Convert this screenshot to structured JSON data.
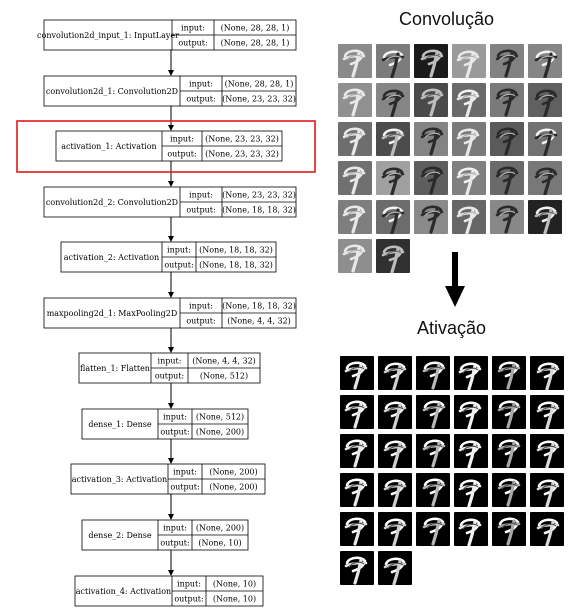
{
  "model": {
    "layers": [
      {
        "name": "convolution2d_input_1: InputLayer",
        "input": "(None, 28, 28, 1)",
        "output": "(None, 28, 28, 1)",
        "highlighted": false
      },
      {
        "name": "convolution2d_1: Convolution2D",
        "input": "(None, 28, 28, 1)",
        "output": "(None, 23, 23, 32)",
        "highlighted": false
      },
      {
        "name": "activation_1: Activation",
        "input": "(None, 23, 23, 32)",
        "output": "(None, 23, 23, 32)",
        "highlighted": true
      },
      {
        "name": "convolution2d_2: Convolution2D",
        "input": "(None, 23, 23, 32)",
        "output": "(None, 18, 18, 32)",
        "highlighted": false
      },
      {
        "name": "activation_2: Activation",
        "input": "(None, 18, 18, 32)",
        "output": "(None, 18, 18, 32)",
        "highlighted": false
      },
      {
        "name": "maxpooling2d_1: MaxPooling2D",
        "input": "(None, 18, 18, 32)",
        "output": "(None, 4, 4, 32)",
        "highlighted": false
      },
      {
        "name": "flatten_1: Flatten",
        "input": "(None, 4, 4, 32)",
        "output": "(None, 512)",
        "highlighted": false
      },
      {
        "name": "dense_1: Dense",
        "input": "(None, 512)",
        "output": "(None, 200)",
        "highlighted": false
      },
      {
        "name": "activation_3: Activation",
        "input": "(None, 200)",
        "output": "(None, 200)",
        "highlighted": false
      },
      {
        "name": "dense_2: Dense",
        "input": "(None, 200)",
        "output": "(None, 10)",
        "highlighted": false
      },
      {
        "name": "activation_4: Activation",
        "input": "(None, 10)",
        "output": "(None, 10)",
        "highlighted": false
      }
    ],
    "port_labels": {
      "input": "input:",
      "output": "output:"
    }
  },
  "panels": {
    "convolution": {
      "title": "Convolução",
      "tile_count": 32,
      "backgrounds": [
        "#8a8a8a",
        "#7c7c7c",
        "#1a1a1a",
        "#9a9a9a",
        "#828282",
        "#858585",
        "#909090",
        "#868686",
        "#4a4a4a",
        "#6a6a6a",
        "#7a7a7a",
        "#606060",
        "#6e6e6e",
        "#4c4c4c",
        "#848484",
        "#7a7a7a",
        "#5a5a5a",
        "#727272",
        "#707070",
        "#a0a0a0",
        "#5e5e5e",
        "#808080",
        "#6a6a6a",
        "#787878",
        "#7e7e7e",
        "#6c6c6c",
        "#8a8a8a",
        "#666666",
        "#888888",
        "#222222",
        "#8e8e8e",
        "#303030"
      ]
    },
    "activation": {
      "title": "Ativação",
      "tile_count": 32
    }
  },
  "colors": {
    "highlight": "#e0191e",
    "box_stroke": "#000000"
  }
}
